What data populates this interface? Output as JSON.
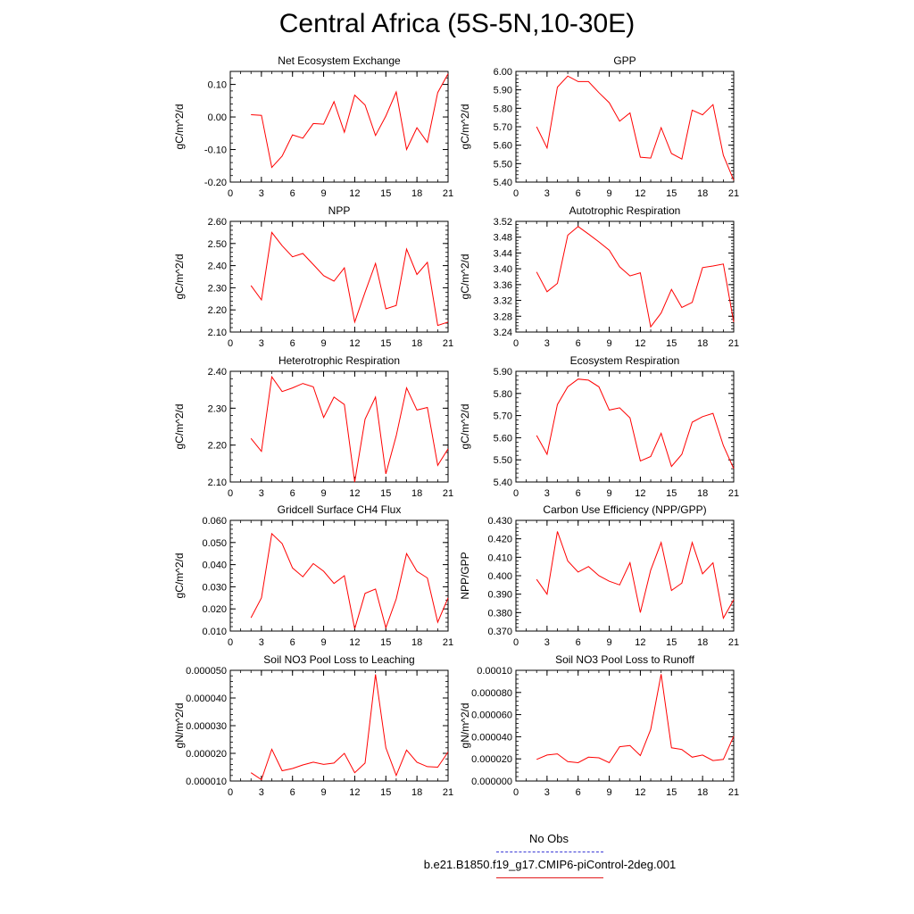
{
  "figure": {
    "title": "Central Africa (5S-5N,10-30E)",
    "line_color": "#ff0000",
    "obs_color": "#3a3ad6"
  },
  "legend": {
    "obs_label": "No Obs",
    "case_label": "b.e21.B1850.f19_g17.CMIP6-piControl-2deg.001"
  },
  "chart_data": [
    {
      "type": "line",
      "title": "Net Ecosystem Exchange",
      "ylabel": "gC/m^2/d",
      "xlim": [
        0,
        21
      ],
      "xticks": [
        "0",
        "3",
        "6",
        "9",
        "12",
        "15",
        "18",
        "21"
      ],
      "ylim": [
        -0.2,
        0.14
      ],
      "yticks": [
        -0.2,
        -0.1,
        0.0,
        0.1
      ],
      "ytick_labels": [
        "-0.20",
        "-0.10",
        "0.00",
        "0.10"
      ],
      "series": [
        {
          "x": [
            2,
            3,
            4,
            5,
            6,
            7,
            8,
            9,
            10,
            11,
            12,
            13,
            14,
            15,
            16,
            17,
            18,
            19,
            20,
            21
          ],
          "values": [
            0.007,
            0.005,
            -0.155,
            -0.12,
            -0.055,
            -0.065,
            -0.02,
            -0.022,
            0.047,
            -0.047,
            0.067,
            0.037,
            -0.057,
            0.003,
            0.077,
            -0.1,
            -0.033,
            -0.078,
            0.075,
            0.133
          ]
        }
      ]
    },
    {
      "type": "line",
      "title": "GPP",
      "ylabel": "gC/m^2/d",
      "xlim": [
        0,
        21
      ],
      "xticks": [
        "0",
        "3",
        "6",
        "9",
        "12",
        "15",
        "18",
        "21"
      ],
      "ylim": [
        5.4,
        6.0
      ],
      "yticks": [
        5.4,
        5.5,
        5.6,
        5.7,
        5.8,
        5.9,
        6.0
      ],
      "ytick_labels": [
        "5.40",
        "5.50",
        "5.60",
        "5.70",
        "5.80",
        "5.90",
        "6.00"
      ],
      "series": [
        {
          "x": [
            2,
            3,
            4,
            5,
            6,
            7,
            8,
            9,
            10,
            11,
            12,
            13,
            14,
            15,
            16,
            17,
            18,
            19,
            20,
            21
          ],
          "values": [
            5.7,
            5.585,
            5.915,
            5.975,
            5.945,
            5.945,
            5.885,
            5.83,
            5.73,
            5.775,
            5.535,
            5.53,
            5.695,
            5.555,
            5.525,
            5.79,
            5.765,
            5.82,
            5.545,
            5.41
          ]
        }
      ]
    },
    {
      "type": "line",
      "title": "NPP",
      "ylabel": "gC/m^2/d",
      "xlim": [
        0,
        21
      ],
      "xticks": [
        "0",
        "3",
        "6",
        "9",
        "12",
        "15",
        "18",
        "21"
      ],
      "ylim": [
        2.1,
        2.6
      ],
      "yticks": [
        2.1,
        2.2,
        2.3,
        2.4,
        2.5,
        2.6
      ],
      "ytick_labels": [
        "2.10",
        "2.20",
        "2.30",
        "2.40",
        "2.50",
        "2.60"
      ],
      "series": [
        {
          "x": [
            2,
            3,
            4,
            5,
            6,
            7,
            8,
            9,
            10,
            11,
            12,
            13,
            14,
            15,
            16,
            17,
            18,
            19,
            20,
            21
          ],
          "values": [
            2.31,
            2.245,
            2.55,
            2.49,
            2.44,
            2.455,
            2.405,
            2.355,
            2.33,
            2.39,
            2.145,
            2.28,
            2.41,
            2.205,
            2.22,
            2.475,
            2.36,
            2.415,
            2.13,
            2.145
          ]
        }
      ]
    },
    {
      "type": "line",
      "title": "Autotrophic Respiration",
      "ylabel": "gC/m^2/d",
      "xlim": [
        0,
        21
      ],
      "xticks": [
        "0",
        "3",
        "6",
        "9",
        "12",
        "15",
        "18",
        "21"
      ],
      "ylim": [
        3.24,
        3.52
      ],
      "yticks": [
        3.24,
        3.28,
        3.32,
        3.36,
        3.4,
        3.44,
        3.48,
        3.52
      ],
      "ytick_labels": [
        "3.24",
        "3.28",
        "3.32",
        "3.36",
        "3.40",
        "3.44",
        "3.48",
        "3.52"
      ],
      "series": [
        {
          "x": [
            2,
            3,
            4,
            5,
            6,
            7,
            8,
            9,
            10,
            11,
            12,
            13,
            14,
            15,
            16,
            17,
            18,
            19,
            20,
            21
          ],
          "values": [
            3.392,
            3.342,
            3.363,
            3.485,
            3.507,
            3.488,
            3.468,
            3.447,
            3.405,
            3.382,
            3.39,
            3.253,
            3.288,
            3.348,
            3.302,
            3.315,
            3.403,
            3.407,
            3.412,
            3.265
          ]
        }
      ]
    },
    {
      "type": "line",
      "title": "Heterotrophic Respiration",
      "ylabel": "gC/m^2/d",
      "xlim": [
        0,
        21
      ],
      "xticks": [
        "0",
        "3",
        "6",
        "9",
        "12",
        "15",
        "18",
        "21"
      ],
      "ylim": [
        2.1,
        2.4
      ],
      "yticks": [
        2.1,
        2.2,
        2.3,
        2.4
      ],
      "ytick_labels": [
        "2.10",
        "2.20",
        "2.30",
        "2.40"
      ],
      "series": [
        {
          "x": [
            2,
            3,
            4,
            5,
            6,
            7,
            8,
            9,
            10,
            11,
            12,
            13,
            14,
            15,
            16,
            17,
            18,
            19,
            20,
            21
          ],
          "values": [
            2.218,
            2.183,
            2.385,
            2.345,
            2.355,
            2.367,
            2.358,
            2.275,
            2.33,
            2.31,
            2.1,
            2.27,
            2.33,
            2.122,
            2.225,
            2.355,
            2.295,
            2.302,
            2.145,
            2.19
          ]
        }
      ]
    },
    {
      "type": "line",
      "title": "Ecosystem Respiration",
      "ylabel": "gC/m^2/d",
      "xlim": [
        0,
        21
      ],
      "xticks": [
        "0",
        "3",
        "6",
        "9",
        "12",
        "15",
        "18",
        "21"
      ],
      "ylim": [
        5.4,
        5.9
      ],
      "yticks": [
        5.4,
        5.5,
        5.6,
        5.7,
        5.8,
        5.9
      ],
      "ytick_labels": [
        "5.40",
        "5.50",
        "5.60",
        "5.70",
        "5.80",
        "5.90"
      ],
      "series": [
        {
          "x": [
            2,
            3,
            4,
            5,
            6,
            7,
            8,
            9,
            10,
            11,
            12,
            13,
            14,
            15,
            16,
            17,
            18,
            19,
            20,
            21
          ],
          "values": [
            5.61,
            5.525,
            5.75,
            5.83,
            5.865,
            5.86,
            5.83,
            5.725,
            5.735,
            5.69,
            5.495,
            5.515,
            5.62,
            5.47,
            5.525,
            5.67,
            5.695,
            5.71,
            5.565,
            5.46
          ]
        }
      ]
    },
    {
      "type": "line",
      "title": "Gridcell Surface CH4 Flux",
      "ylabel": "gC/m^2/d",
      "xlim": [
        0,
        21
      ],
      "xticks": [
        "0",
        "3",
        "6",
        "9",
        "12",
        "15",
        "18",
        "21"
      ],
      "ylim": [
        0.01,
        0.06
      ],
      "yticks": [
        0.01,
        0.02,
        0.03,
        0.04,
        0.05,
        0.06
      ],
      "ytick_labels": [
        "0.010",
        "0.020",
        "0.030",
        "0.040",
        "0.050",
        "0.060"
      ],
      "series": [
        {
          "x": [
            2,
            3,
            4,
            5,
            6,
            7,
            8,
            9,
            10,
            11,
            12,
            13,
            14,
            15,
            16,
            17,
            18,
            19,
            20,
            21
          ],
          "values": [
            0.016,
            0.025,
            0.054,
            0.0495,
            0.0385,
            0.0345,
            0.0405,
            0.037,
            0.0315,
            0.035,
            0.011,
            0.027,
            0.029,
            0.0115,
            0.0245,
            0.045,
            0.037,
            0.034,
            0.014,
            0.025
          ]
        }
      ]
    },
    {
      "type": "line",
      "title": "Carbon Use Efficiency (NPP/GPP)",
      "ylabel": "NPP/GPP",
      "xlim": [
        0,
        21
      ],
      "xticks": [
        "0",
        "3",
        "6",
        "9",
        "12",
        "15",
        "18",
        "21"
      ],
      "ylim": [
        0.37,
        0.43
      ],
      "yticks": [
        0.37,
        0.38,
        0.39,
        0.4,
        0.41,
        0.42,
        0.43
      ],
      "ytick_labels": [
        "0.370",
        "0.380",
        "0.390",
        "0.400",
        "0.410",
        "0.420",
        "0.430"
      ],
      "series": [
        {
          "x": [
            2,
            3,
            4,
            5,
            6,
            7,
            8,
            9,
            10,
            11,
            12,
            13,
            14,
            15,
            16,
            17,
            18,
            19,
            20,
            21
          ],
          "values": [
            0.398,
            0.39,
            0.424,
            0.408,
            0.402,
            0.405,
            0.4,
            0.397,
            0.395,
            0.407,
            0.38,
            0.403,
            0.418,
            0.392,
            0.396,
            0.418,
            0.401,
            0.407,
            0.377,
            0.387
          ]
        }
      ]
    },
    {
      "type": "line",
      "title": "Soil NO3 Pool Loss to Leaching",
      "ylabel": "gN/m^2/d",
      "xlim": [
        0,
        21
      ],
      "xticks": [
        "0",
        "3",
        "6",
        "9",
        "12",
        "15",
        "18",
        "21"
      ],
      "ylim": [
        1e-05,
        5e-05
      ],
      "yticks": [
        1e-05,
        2e-05,
        3e-05,
        4e-05,
        5e-05
      ],
      "ytick_labels": [
        "0.000010",
        "0.000020",
        "0.000030",
        "0.000040",
        "0.000050"
      ],
      "series": [
        {
          "x": [
            2,
            3,
            4,
            5,
            6,
            7,
            8,
            9,
            10,
            11,
            12,
            13,
            14,
            15,
            16,
            17,
            18,
            19,
            20,
            21
          ],
          "values": [
            1.3e-05,
            1.05e-05,
            2.15e-05,
            1.37e-05,
            1.45e-05,
            1.58e-05,
            1.68e-05,
            1.6e-05,
            1.65e-05,
            2e-05,
            1.3e-05,
            1.65e-05,
            4.85e-05,
            2.2e-05,
            1.2e-05,
            2.12e-05,
            1.68e-05,
            1.52e-05,
            1.5e-05,
            2.05e-05
          ]
        }
      ]
    },
    {
      "type": "line",
      "title": "Soil NO3 Pool Loss to Runoff",
      "ylabel": "gN/m^2/d",
      "xlim": [
        0,
        21
      ],
      "xticks": [
        "0",
        "3",
        "6",
        "9",
        "12",
        "15",
        "18",
        "21"
      ],
      "ylim": [
        0.0,
        0.0001
      ],
      "yticks": [
        0.0,
        2e-05,
        4e-05,
        6e-05,
        8e-05,
        0.0001
      ],
      "ytick_labels": [
        "0.000000",
        "0.000020",
        "0.000040",
        "0.000060",
        "0.000080",
        "0.00010"
      ],
      "series": [
        {
          "x": [
            2,
            3,
            4,
            5,
            6,
            7,
            8,
            9,
            10,
            11,
            12,
            13,
            14,
            15,
            16,
            17,
            18,
            19,
            20,
            21
          ],
          "values": [
            1.95e-05,
            2.35e-05,
            2.45e-05,
            1.75e-05,
            1.65e-05,
            2.15e-05,
            2.1e-05,
            1.65e-05,
            3.1e-05,
            3.2e-05,
            2.3e-05,
            4.65e-05,
            9.65e-05,
            3e-05,
            2.85e-05,
            2.15e-05,
            2.35e-05,
            1.85e-05,
            1.95e-05,
            4.05e-05
          ]
        }
      ]
    }
  ]
}
